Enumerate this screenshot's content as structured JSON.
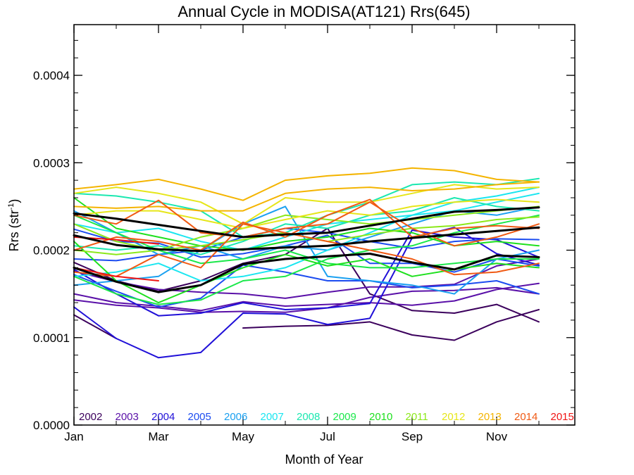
{
  "chart_data": {
    "type": "line",
    "title": "Annual Cycle in MODISA(AT121) Rrs(645)",
    "xlabel": "Month of Year",
    "ylabel_main": "Rrs (str",
    "ylabel_sup": "-1",
    "ylabel_close": ")",
    "xlim": [
      1,
      12.85
    ],
    "ylim": [
      0,
      0.000458
    ],
    "x_ticks": [
      {
        "value": 1,
        "label": "Jan"
      },
      {
        "value": 3,
        "label": "Mar"
      },
      {
        "value": 5,
        "label": "May"
      },
      {
        "value": 7,
        "label": "Jul"
      },
      {
        "value": 9,
        "label": "Sep"
      },
      {
        "value": 11,
        "label": "Nov"
      }
    ],
    "y_ticks": [
      {
        "value": 0,
        "label": "0.0000"
      },
      {
        "value": 0.0001,
        "label": "0.0001"
      },
      {
        "value": 0.0002,
        "label": "0.0002"
      },
      {
        "value": 0.0003,
        "label": "0.0003"
      },
      {
        "value": 0.0004,
        "label": "0.0004"
      }
    ],
    "legend_position": "bottom",
    "legend": [
      {
        "label": "2002",
        "color": "#3b005c"
      },
      {
        "label": "2003",
        "color": "#5a10a8"
      },
      {
        "label": "2004",
        "color": "#2010d8"
      },
      {
        "label": "2005",
        "color": "#1c4cf0"
      },
      {
        "label": "2006",
        "color": "#1aa0f0"
      },
      {
        "label": "2007",
        "color": "#1ae6f0"
      },
      {
        "label": "2008",
        "color": "#1ae8b0"
      },
      {
        "label": "2009",
        "color": "#1ae84a"
      },
      {
        "label": "2010",
        "color": "#1ee01e"
      },
      {
        "label": "2011",
        "color": "#8ce81a"
      },
      {
        "label": "2012",
        "color": "#e6e61a"
      },
      {
        "label": "2013",
        "color": "#f4b400"
      },
      {
        "label": "2014",
        "color": "#f05a14"
      },
      {
        "label": "2015",
        "color": "#f01414"
      }
    ],
    "series": [
      {
        "color": "#3b005c",
        "values": [
          0.000126,
          9.9e-05,
          null,
          null,
          0.000111,
          0.000113,
          0.000114,
          0.000118,
          0.000103,
          9.7e-05,
          0.000118,
          0.000132
        ]
      },
      {
        "color": "#3b005c",
        "values": [
          0.000186,
          0.000165,
          0.000153,
          0.000165,
          0.000185,
          0.000195,
          0.000225,
          0.00015,
          0.000131,
          0.000128,
          0.000138,
          0.000118
        ]
      },
      {
        "color": "#5a10a8",
        "values": [
          0.000176,
          0.000164,
          0.000155,
          0.000152,
          0.00015,
          0.000145,
          0.000152,
          0.000158,
          0.000158,
          0.000161,
          0.000182,
          0.00019
        ]
      },
      {
        "color": "#5a10a8",
        "values": [
          0.00015,
          0.00014,
          0.000136,
          0.000131,
          0.000141,
          0.000136,
          0.000138,
          0.00014,
          0.000137,
          0.000142,
          0.000155,
          0.000162
        ]
      },
      {
        "color": "#5a10a8",
        "values": [
          0.000143,
          0.000137,
          0.000134,
          0.000129,
          0.00013,
          0.000129,
          0.000134,
          0.000146,
          0.000153,
          0.000154,
          0.000157,
          0.00015
        ]
      },
      {
        "color": "#2010d8",
        "values": [
          0.000135,
          9.9e-05,
          7.7e-05,
          8.3e-05,
          0.000128,
          0.000127,
          0.000115,
          0.000122,
          0.000214,
          0.000226,
          0.000196,
          0.000183
        ]
      },
      {
        "color": "#2010d8",
        "values": [
          0.000178,
          0.00015,
          0.000125,
          0.000128,
          0.00014,
          0.000132,
          0.000134,
          0.000139,
          0.000223,
          0.000215,
          0.000212,
          0.000192
        ]
      },
      {
        "color": "#1c4cf0",
        "values": [
          0.000172,
          0.000153,
          0.000135,
          0.000145,
          0.000183,
          0.000175,
          0.000165,
          0.000165,
          0.000157,
          0.00016,
          0.000165,
          0.00015
        ]
      },
      {
        "color": "#1c4cf0",
        "values": [
          0.000224,
          0.00021,
          0.000208,
          0.000192,
          0.000196,
          0.000205,
          0.000217,
          0.000185,
          0.000185,
          0.000175,
          0.00019,
          0.000182
        ]
      },
      {
        "color": "#1c4cf0",
        "values": [
          0.00019,
          0.000188,
          0.000195,
          0.0002,
          0.000215,
          0.000225,
          0.00022,
          0.00021,
          0.000202,
          0.00021,
          0.000213,
          0.000212
        ]
      },
      {
        "color": "#1aa0f0",
        "values": [
          0.00016,
          0.000165,
          0.00017,
          0.0002,
          0.00023,
          0.00025,
          0.00017,
          0.000165,
          0.00016,
          0.00015,
          0.00019,
          0.0002
        ]
      },
      {
        "color": "#1aa0f0",
        "values": [
          0.000245,
          0.00022,
          0.000195,
          0.000205,
          0.00019,
          0.000205,
          0.0002,
          0.000215,
          0.00023,
          0.000245,
          0.00024,
          0.00025
        ]
      },
      {
        "color": "#1ae6f0",
        "values": [
          0.00017,
          0.000175,
          0.000185,
          0.000165,
          0.00017,
          0.00018,
          0.0002,
          0.00022,
          0.00024,
          0.000255,
          0.000262,
          0.000272
        ]
      },
      {
        "color": "#1ae6f0",
        "values": [
          0.00023,
          0.00022,
          0.000225,
          0.00021,
          0.0002,
          0.000215,
          0.00023,
          0.000235,
          0.00024,
          0.000245,
          0.000255,
          0.000265
        ]
      },
      {
        "color": "#1ae8b0",
        "values": [
          0.000265,
          0.000262,
          0.000255,
          0.000245,
          0.000215,
          0.00022,
          0.00024,
          0.000255,
          0.000275,
          0.000278,
          0.000275,
          0.000282
        ]
      },
      {
        "color": "#1ae8b0",
        "values": [
          0.000205,
          0.0002,
          0.000205,
          0.000195,
          0.00021,
          0.00023,
          0.000225,
          0.00024,
          0.000245,
          0.00026,
          0.00025,
          0.000245
        ]
      },
      {
        "color": "#1ae84a",
        "values": [
          0.00017,
          0.00015,
          0.000138,
          0.000143,
          0.000165,
          0.00017,
          0.00019,
          0.0002,
          0.000205,
          0.00022,
          0.00023,
          0.00024
        ]
      },
      {
        "color": "#1ae84a",
        "values": [
          0.00024,
          0.00022,
          0.0002,
          0.000185,
          0.00019,
          0.0002,
          0.000185,
          0.00018,
          0.00018,
          0.000185,
          0.00019,
          0.00019
        ]
      },
      {
        "color": "#1ee01e",
        "values": [
          0.00021,
          0.000165,
          0.00014,
          0.00016,
          0.00018,
          0.000195,
          0.000182,
          0.00019,
          0.00017,
          0.000178,
          0.000185,
          0.00018
        ]
      },
      {
        "color": "#1ee01e",
        "values": [
          0.00026,
          0.000225,
          0.000215,
          0.000205,
          0.0002,
          0.00021,
          0.000215,
          0.000225,
          0.00022,
          0.000205,
          0.00021,
          0.000205
        ]
      },
      {
        "color": "#8ce81a",
        "values": [
          0.00023,
          0.00021,
          0.0002,
          0.000215,
          0.000225,
          0.00024,
          0.000235,
          0.00023,
          0.000235,
          0.00024,
          0.000245,
          0.00025
        ]
      },
      {
        "color": "#8ce81a",
        "values": [
          0.0002,
          0.000195,
          0.0002,
          0.000205,
          0.000212,
          0.00022,
          0.00021,
          0.000218,
          0.000225,
          0.000228,
          0.000235,
          0.000238
        ]
      },
      {
        "color": "#e6e61a",
        "values": [
          0.000265,
          0.000272,
          0.000265,
          0.000255,
          0.00023,
          0.00026,
          0.000255,
          0.000255,
          0.000265,
          0.000275,
          0.00027,
          0.000272
        ]
      },
      {
        "color": "#e6e61a",
        "values": [
          0.00024,
          0.000245,
          0.000245,
          0.000235,
          0.000225,
          0.000235,
          0.000245,
          0.00024,
          0.00025,
          0.000255,
          0.000258,
          0.000255
        ]
      },
      {
        "color": "#f4b400",
        "values": [
          0.00027,
          0.000275,
          0.000281,
          0.00027,
          0.000257,
          0.00028,
          0.000285,
          0.000288,
          0.000294,
          0.000291,
          0.000281,
          0.000278
        ]
      },
      {
        "color": "#f4b400",
        "values": [
          0.00025,
          0.000248,
          0.00025,
          0.000245,
          0.000245,
          0.000265,
          0.00027,
          0.000272,
          0.000268,
          0.00027,
          0.000275,
          0.000278
        ]
      },
      {
        "color": "#f05a14",
        "values": [
          0.0002,
          0.000215,
          0.00021,
          0.0002,
          0.000232,
          0.000215,
          0.00024,
          0.000258,
          0.000215,
          0.000225,
          0.000228,
          0.000225
        ]
      },
      {
        "color": "#f05a14",
        "values": [
          0.000175,
          0.00017,
          0.000195,
          0.00018,
          0.00023,
          0.00022,
          0.00021,
          0.0002,
          0.00019,
          0.000172,
          0.000175,
          0.000185
        ]
      },
      {
        "color": "#f05a14",
        "values": [
          0.00024,
          0.00023,
          0.000257,
          0.00022,
          0.000215,
          0.000225,
          0.00023,
          0.000255,
          0.000225,
          0.000205,
          0.000215,
          0.00023
        ]
      },
      {
        "color": "#f01414",
        "values": [
          0.000215,
          0.000212,
          0.000207,
          null,
          null,
          null,
          null,
          null,
          null,
          null,
          null,
          null
        ]
      },
      {
        "color": "#f01414",
        "values": [
          0.00018,
          0.00017,
          0.000165,
          null,
          null,
          null,
          null,
          null,
          null,
          null,
          null,
          null
        ]
      },
      {
        "color": "#000000",
        "width": 3,
        "values": [
          0.000242,
          0.000236,
          0.000229,
          0.000222,
          0.000215,
          0.000218,
          0.00022,
          0.000228,
          0.000236,
          0.000244,
          0.000246,
          0.000249
        ]
      },
      {
        "color": "#000000",
        "width": 3,
        "values": [
          0.000217,
          0.000206,
          0.000201,
          0.000199,
          0.000201,
          0.000203,
          0.000205,
          0.00021,
          0.000214,
          0.000218,
          0.000222,
          0.000226
        ]
      },
      {
        "color": "#000000",
        "width": 3,
        "values": [
          0.00018,
          0.000164,
          0.000152,
          0.00016,
          0.000184,
          0.00019,
          0.000193,
          0.000196,
          0.000186,
          0.000178,
          0.000194,
          0.000192
        ]
      }
    ]
  }
}
